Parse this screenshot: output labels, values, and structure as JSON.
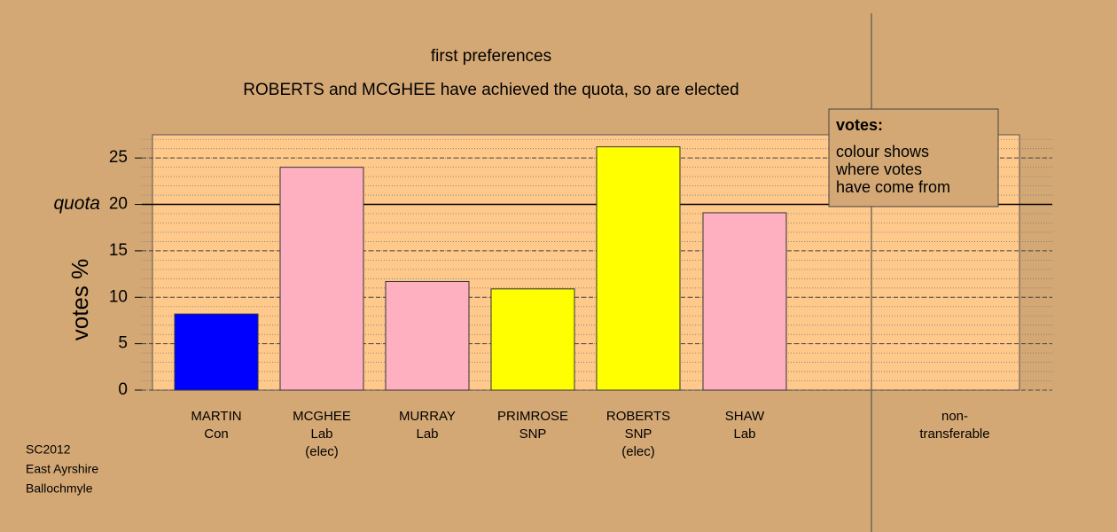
{
  "chart_data": {
    "type": "bar",
    "title": "first preferences",
    "subtitle": "ROBERTS and MCGHEE have achieved the quota, so are elected",
    "y_label": "votes %",
    "categories": [
      [
        "MARTIN",
        "Con"
      ],
      [
        "MCGHEE",
        "Lab",
        "(elec)"
      ],
      [
        "MURRAY",
        "Lab"
      ],
      [
        "PRIMROSE",
        "SNP"
      ],
      [
        "ROBERTS",
        "SNP",
        "(elec)"
      ],
      [
        "SHAW",
        "Lab"
      ],
      [
        "non-",
        "transferable"
      ]
    ],
    "values": [
      8.2,
      24.0,
      11.7,
      10.9,
      26.2,
      19.1,
      null
    ],
    "colors": [
      "#0000ff",
      "#ffb0c0",
      "#ffb0c0",
      "#ffff00",
      "#ffff00",
      "#ffb0c0",
      null
    ],
    "ylim": [
      0,
      27.5
    ],
    "yticks": [
      0,
      5,
      10,
      15,
      20,
      25
    ],
    "minor_ystep": 1,
    "grid": true,
    "quota": 20,
    "quota_label": "quota",
    "legend": {
      "title": "votes:",
      "lines": [
        "colour shows",
        "where votes",
        "have come from"
      ]
    },
    "footnote": [
      "SC2012",
      "East Ayrshire",
      "Ballochmyle"
    ]
  }
}
